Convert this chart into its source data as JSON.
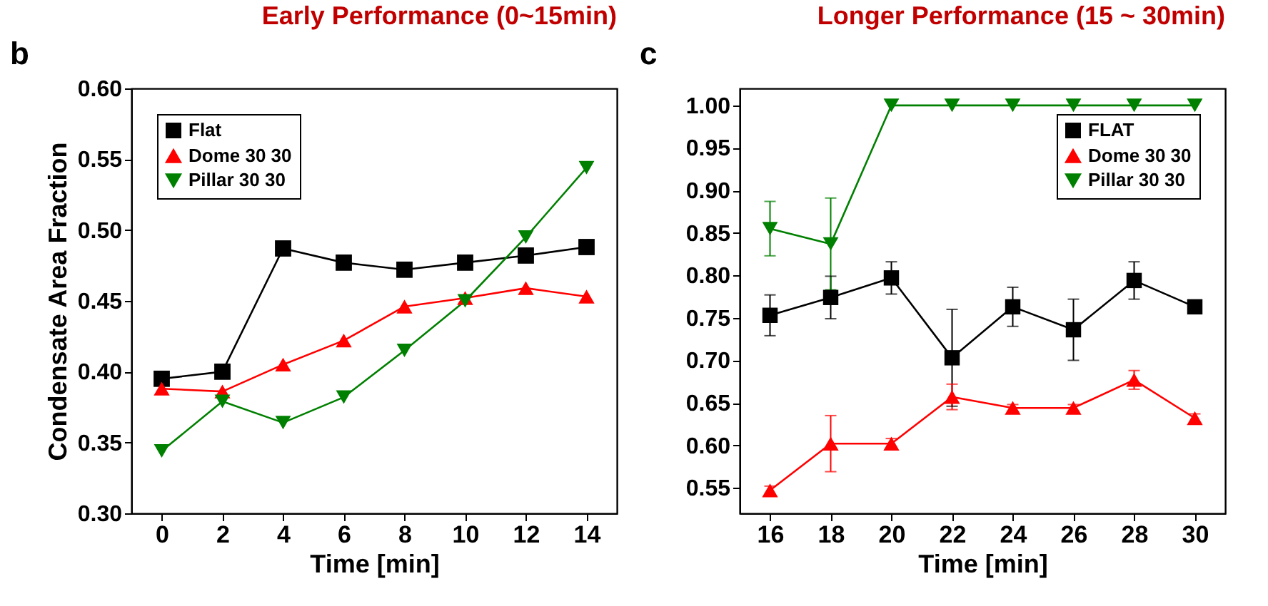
{
  "chart_data": [
    {
      "type": "line",
      "title": "Early Performance (0~15min)",
      "xlabel": "Time [min]",
      "ylabel": "Condensate Area Fraction",
      "annotations": [
        "b"
      ],
      "x": [
        0,
        2,
        4,
        6,
        8,
        10,
        12,
        14
      ],
      "xlim": [
        -1,
        15
      ],
      "xticks": [
        0,
        2,
        4,
        6,
        8,
        10,
        12,
        14
      ],
      "ylim": [
        0.3,
        0.6
      ],
      "yticks": [
        {
          "value": 0.3,
          "label": "0.30"
        },
        {
          "value": 0.35,
          "label": "0.35"
        },
        {
          "value": 0.4,
          "label": "0.40"
        },
        {
          "value": 0.45,
          "label": "0.45"
        },
        {
          "value": 0.5,
          "label": "0.50"
        },
        {
          "value": 0.55,
          "label": "0.55"
        },
        {
          "value": 0.6,
          "label": "0.60"
        }
      ],
      "legend": "top left",
      "series": [
        {
          "name": "Flat",
          "color": "#000000",
          "marker": "square",
          "values": [
            0.395,
            0.4,
            0.487,
            0.477,
            0.472,
            0.477,
            0.482,
            0.488
          ]
        },
        {
          "name": "Dome 30 30",
          "color": "#ff0000",
          "marker": "triangle",
          "values": [
            0.388,
            0.386,
            0.405,
            0.422,
            0.446,
            0.452,
            0.459,
            0.453
          ]
        },
        {
          "name": "Pillar 30 30",
          "color": "#008000",
          "marker": "triangle-down",
          "values": [
            0.344,
            0.379,
            0.364,
            0.382,
            0.415,
            0.45,
            0.495,
            0.544
          ]
        }
      ]
    },
    {
      "type": "line",
      "title": "Longer Performance (15 ~ 30min)",
      "xlabel": "Time [min]",
      "annotations": [
        "c"
      ],
      "x": [
        16,
        18,
        20,
        22,
        24,
        26,
        28,
        30
      ],
      "xlim": [
        15,
        31
      ],
      "xticks": [
        16,
        18,
        20,
        22,
        24,
        26,
        28,
        30
      ],
      "ylim": [
        0.52,
        1.02
      ],
      "yticks": [
        {
          "value": 0.55,
          "label": "0.55"
        },
        {
          "value": 0.6,
          "label": "0.60"
        },
        {
          "value": 0.65,
          "label": "0.65"
        },
        {
          "value": 0.7,
          "label": "0.70"
        },
        {
          "value": 0.75,
          "label": "0.75"
        },
        {
          "value": 0.8,
          "label": "0.80"
        },
        {
          "value": 0.85,
          "label": "0.85"
        },
        {
          "value": 0.9,
          "label": "0.90"
        },
        {
          "value": 0.95,
          "label": "0.95"
        },
        {
          "value": 1.0,
          "label": "1.00"
        }
      ],
      "legend": "top right",
      "series": [
        {
          "name": "FLAT",
          "color": "#000000",
          "marker": "square",
          "values": [
            0.753,
            0.774,
            0.797,
            0.703,
            0.763,
            0.736,
            0.794,
            0.763
          ],
          "errors": [
            0.024,
            0.025,
            0.019,
            0.057,
            0.023,
            0.036,
            0.022,
            null
          ]
        },
        {
          "name": "Dome 30 30",
          "color": "#ff0000",
          "marker": "triangle",
          "values": [
            0.547,
            0.602,
            0.602,
            0.657,
            0.644,
            0.644,
            0.677,
            0.632
          ],
          "errors": [
            0.005,
            0.033,
            0.006,
            0.015,
            0.004,
            0.004,
            0.011,
            0.005
          ]
        },
        {
          "name": "Pillar 30 30",
          "color": "#008000",
          "marker": "triangle-down",
          "values": [
            0.855,
            0.837,
            1.0,
            1.0,
            1.0,
            1.0,
            1.0,
            1.0
          ],
          "errors": [
            0.032,
            0.054,
            null,
            null,
            null,
            null,
            null,
            null
          ]
        }
      ]
    }
  ]
}
